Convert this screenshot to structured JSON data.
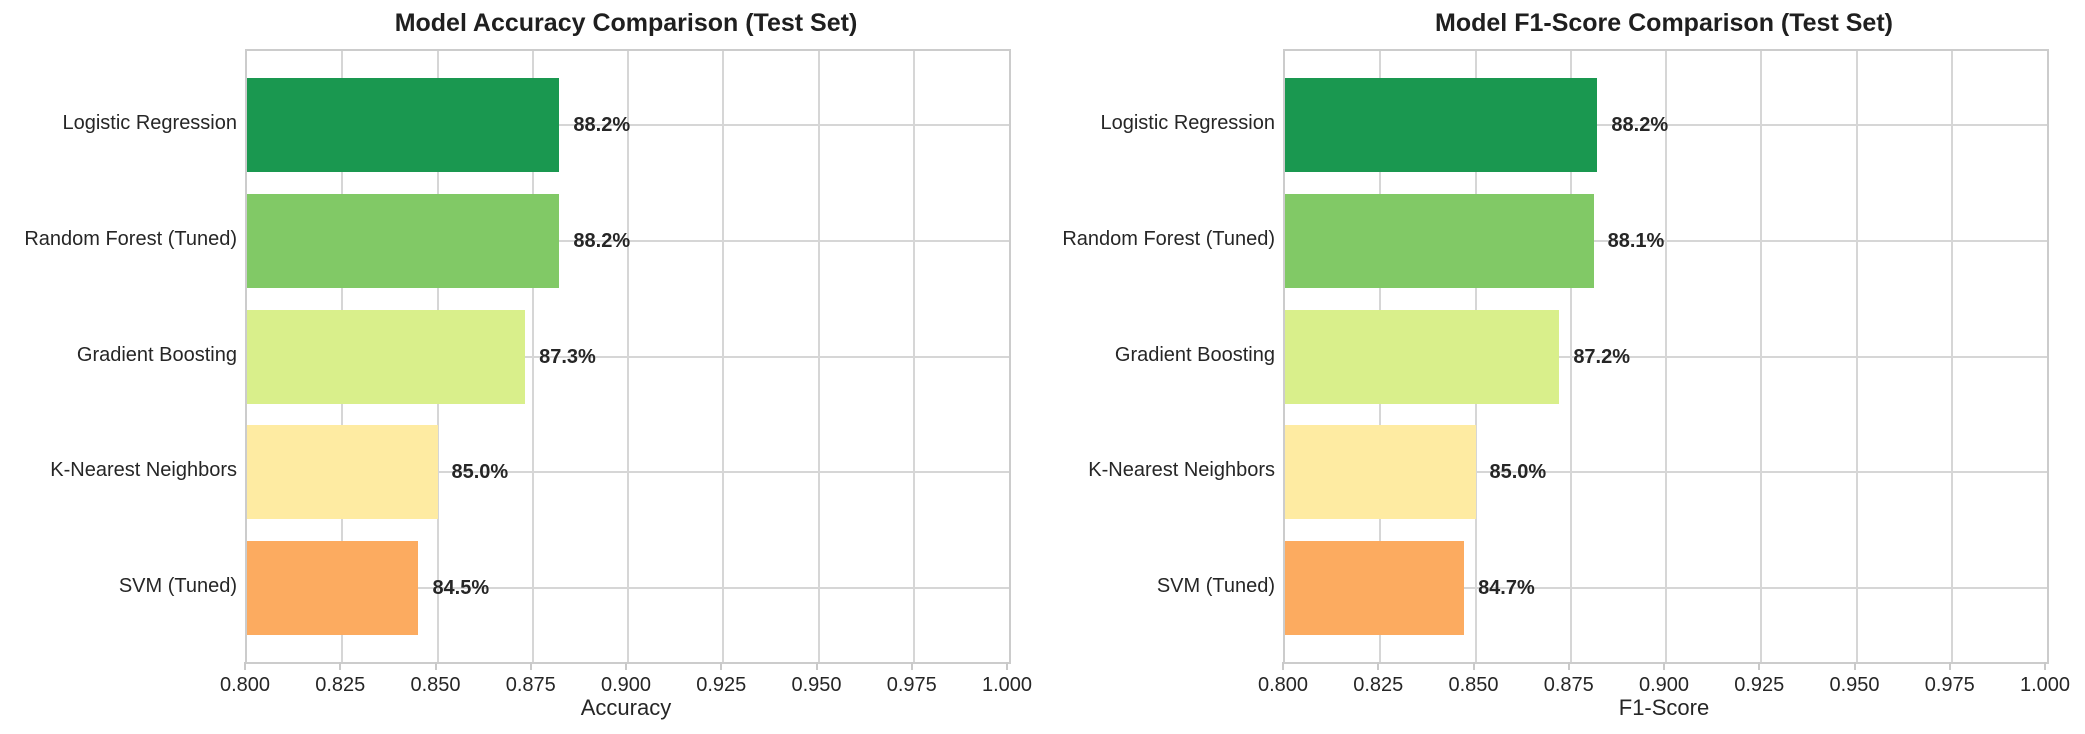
{
  "style": {
    "background": "#ffffff",
    "grid_color": "#d6d6d6",
    "spine_color": "#cccccc",
    "tick_color": "#c9c9c9",
    "text_color": "#262626",
    "title_color": "#1f1f1f"
  },
  "chart_data": [
    {
      "type": "bar",
      "orientation": "horizontal",
      "title": "Model Accuracy Comparison (Test Set)",
      "xlabel": "Accuracy",
      "categories": [
        "Logistic Regression",
        "Random Forest (Tuned)",
        "Gradient Boosting",
        "K-Nearest Neighbors",
        "SVM (Tuned)"
      ],
      "values": [
        0.882,
        0.882,
        0.873,
        0.85,
        0.845
      ],
      "value_labels": [
        "88.2%",
        "88.2%",
        "87.3%",
        "85.0%",
        "84.5%"
      ],
      "bar_colors": [
        "#1a9850",
        "#81c966",
        "#d9ef8b",
        "#feeba2",
        "#fcab60"
      ],
      "xlim": [
        0.8,
        1.0
      ],
      "xticks": [
        0.8,
        0.825,
        0.85,
        0.875,
        0.9,
        0.925,
        0.95,
        0.975,
        1.0
      ],
      "xtick_labels": [
        "0.800",
        "0.825",
        "0.850",
        "0.875",
        "0.900",
        "0.925",
        "0.950",
        "0.975",
        "1.000"
      ],
      "grid": true,
      "legend": null
    },
    {
      "type": "bar",
      "orientation": "horizontal",
      "title": "Model F1-Score Comparison (Test Set)",
      "xlabel": "F1-Score",
      "categories": [
        "Logistic Regression",
        "Random Forest (Tuned)",
        "Gradient Boosting",
        "K-Nearest Neighbors",
        "SVM (Tuned)"
      ],
      "values": [
        0.882,
        0.881,
        0.872,
        0.85,
        0.847
      ],
      "value_labels": [
        "88.2%",
        "88.1%",
        "87.2%",
        "85.0%",
        "84.7%"
      ],
      "bar_colors": [
        "#1a9850",
        "#81c966",
        "#d9ef8b",
        "#feeba2",
        "#fcab60"
      ],
      "xlim": [
        0.8,
        1.0
      ],
      "xticks": [
        0.8,
        0.825,
        0.85,
        0.875,
        0.9,
        0.925,
        0.95,
        0.975,
        1.0
      ],
      "xtick_labels": [
        "0.800",
        "0.825",
        "0.850",
        "0.875",
        "0.900",
        "0.925",
        "0.950",
        "0.975",
        "1.000"
      ],
      "grid": true,
      "legend": null
    }
  ]
}
